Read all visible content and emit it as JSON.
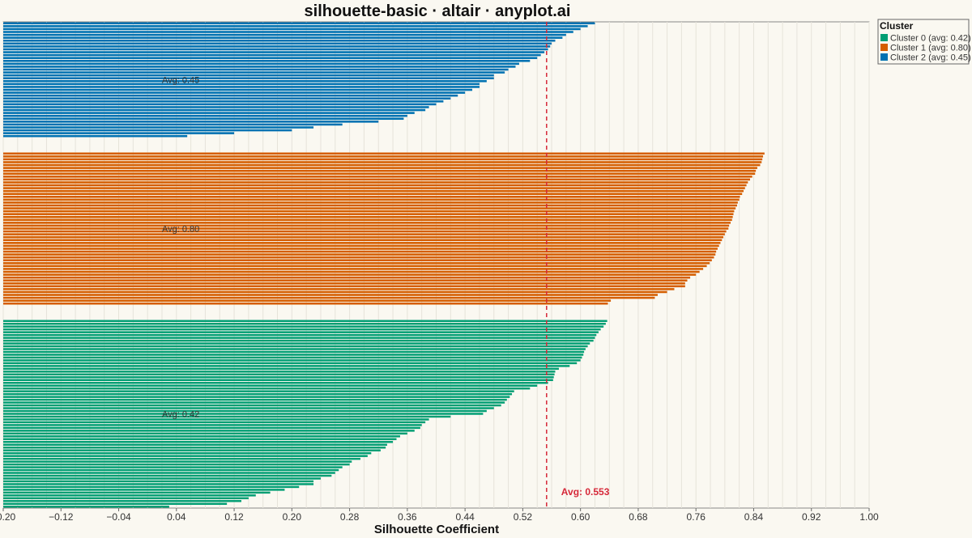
{
  "chart_data": {
    "type": "bar",
    "orientation": "horizontal",
    "title": "silhouette-basic · altair · anyplot.ai",
    "xlabel": "Silhouette Coefficient",
    "xlim": [
      -0.2,
      1.0
    ],
    "x_ticks": [
      "−0.20",
      "−0.12",
      "−0.04",
      "0.04",
      "0.12",
      "0.20",
      "0.28",
      "0.36",
      "0.44",
      "0.52",
      "0.60",
      "0.68",
      "0.76",
      "0.84",
      "0.92",
      "1.00"
    ],
    "grid": "vertical",
    "legend": {
      "title": "Cluster",
      "placement": "top-right",
      "entries": [
        "Cluster 0 (avg: 0.42)",
        "Cluster 1 (avg: 0.80)",
        "Cluster 2 (avg: 0.45)"
      ]
    },
    "overall_average": {
      "value": 0.553,
      "label": "Avg: 0.553",
      "color": "#d62839"
    },
    "colors": {
      "cluster_0": "#009e73",
      "cluster_1": "#d55e00",
      "cluster_2": "#0072b2"
    },
    "series": [
      {
        "name": "Cluster 2 (avg: 0.45)",
        "cluster_label": "Avg: 0.45",
        "color": "#0072b2",
        "values": [
          0.62,
          0.61,
          0.6,
          0.59,
          0.58,
          0.575,
          0.565,
          0.56,
          0.558,
          0.555,
          0.55,
          0.545,
          0.54,
          0.53,
          0.515,
          0.51,
          0.5,
          0.495,
          0.48,
          0.48,
          0.47,
          0.46,
          0.46,
          0.45,
          0.44,
          0.43,
          0.42,
          0.41,
          0.4,
          0.39,
          0.385,
          0.37,
          0.36,
          0.355,
          0.32,
          0.27,
          0.23,
          0.2,
          0.12,
          0.055
        ]
      },
      {
        "name": "Cluster 1 (avg: 0.80)",
        "cluster_label": "Avg: 0.80",
        "color": "#d55e00",
        "values": [
          0.855,
          0.853,
          0.852,
          0.851,
          0.849,
          0.845,
          0.843,
          0.842,
          0.838,
          0.835,
          0.832,
          0.83,
          0.828,
          0.826,
          0.824,
          0.821,
          0.82,
          0.818,
          0.817,
          0.815,
          0.813,
          0.812,
          0.811,
          0.81,
          0.808,
          0.806,
          0.805,
          0.802,
          0.8,
          0.798,
          0.796,
          0.794,
          0.792,
          0.79,
          0.788,
          0.787,
          0.785,
          0.782,
          0.779,
          0.775,
          0.77,
          0.765,
          0.76,
          0.752,
          0.748,
          0.745,
          0.745,
          0.73,
          0.72,
          0.707,
          0.703,
          0.642,
          0.638
        ]
      },
      {
        "name": "Cluster 0 (avg: 0.42)",
        "cluster_label": "Avg: 0.42",
        "color": "#009e73",
        "values": [
          0.637,
          0.635,
          0.632,
          0.628,
          0.625,
          0.622,
          0.62,
          0.618,
          0.613,
          0.61,
          0.607,
          0.605,
          0.604,
          0.602,
          0.6,
          0.595,
          0.585,
          0.57,
          0.565,
          0.564,
          0.563,
          0.562,
          0.555,
          0.54,
          0.53,
          0.508,
          0.505,
          0.502,
          0.498,
          0.495,
          0.49,
          0.48,
          0.47,
          0.465,
          0.42,
          0.39,
          0.385,
          0.38,
          0.378,
          0.37,
          0.36,
          0.35,
          0.345,
          0.34,
          0.332,
          0.33,
          0.323,
          0.31,
          0.305,
          0.295,
          0.283,
          0.28,
          0.27,
          0.265,
          0.26,
          0.255,
          0.24,
          0.23,
          0.23,
          0.21,
          0.19,
          0.17,
          0.15,
          0.14,
          0.13,
          0.11,
          0.03
        ]
      }
    ]
  }
}
